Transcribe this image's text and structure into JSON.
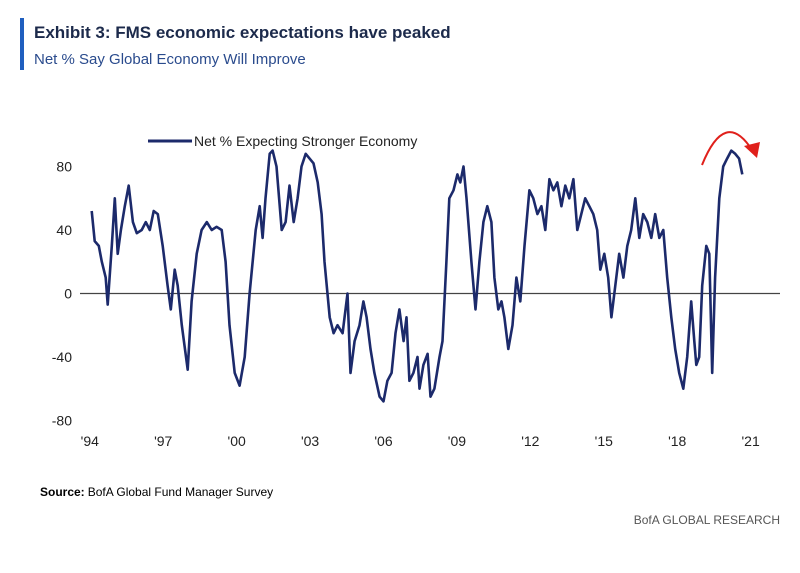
{
  "chart_data": {
    "type": "line",
    "title": "Exhibit 3: FMS economic expectations have peaked",
    "subtitle": "Net % Say Global Economy Will Improve",
    "source_label": "Source:",
    "source": "BofA Global Fund Manager Survey",
    "footer": "BofA GLOBAL RESEARCH",
    "x": [
      1994.08,
      1994.2,
      1994.37,
      1994.49,
      1994.65,
      1994.73,
      1994.9,
      1995.02,
      1995.14,
      1995.27,
      1995.43,
      1995.59,
      1995.76,
      1995.92,
      1996.12,
      1996.29,
      1996.45,
      1996.61,
      1996.78,
      1996.98,
      1997.18,
      1997.31,
      1997.47,
      1997.59,
      1997.76,
      1998.0,
      1998.16,
      1998.37,
      1998.57,
      1998.78,
      1998.98,
      1999.18,
      1999.39,
      1999.55,
      1999.71,
      1999.92,
      2000.12,
      2000.33,
      2000.53,
      2000.78,
      2000.94,
      2001.06,
      2001.18,
      2001.35,
      2001.47,
      2001.63,
      2001.84,
      2002.0,
      2002.16,
      2002.33,
      2002.49,
      2002.65,
      2002.82,
      2002.98,
      2003.14,
      2003.31,
      2003.47,
      2003.59,
      2003.8,
      2003.96,
      2004.12,
      2004.33,
      2004.53,
      2004.65,
      2004.82,
      2005.02,
      2005.18,
      2005.31,
      2005.47,
      2005.63,
      2005.84,
      2006.0,
      2006.16,
      2006.33,
      2006.49,
      2006.65,
      2006.82,
      2006.94,
      2007.06,
      2007.22,
      2007.39,
      2007.47,
      2007.63,
      2007.8,
      2007.92,
      2008.08,
      2008.29,
      2008.41,
      2008.57,
      2008.69,
      2008.86,
      2009.02,
      2009.14,
      2009.27,
      2009.39,
      2009.59,
      2009.76,
      2009.92,
      2010.08,
      2010.24,
      2010.41,
      2010.53,
      2010.69,
      2010.82,
      2010.94,
      2011.1,
      2011.27,
      2011.43,
      2011.59,
      2011.76,
      2011.96,
      2012.12,
      2012.29,
      2012.45,
      2012.61,
      2012.78,
      2012.94,
      2013.1,
      2013.27,
      2013.43,
      2013.59,
      2013.76,
      2013.92,
      2014.08,
      2014.24,
      2014.41,
      2014.57,
      2014.73,
      2014.86,
      2015.02,
      2015.18,
      2015.31,
      2015.47,
      2015.63,
      2015.8,
      2015.96,
      2016.12,
      2016.29,
      2016.45,
      2016.61,
      2016.78,
      2016.94,
      2017.1,
      2017.27,
      2017.43,
      2017.59,
      2017.76,
      2017.92,
      2018.08,
      2018.25,
      2018.41,
      2018.57,
      2018.7,
      2018.78,
      2018.9,
      2019.02,
      2019.19,
      2019.31,
      2019.43,
      2019.55,
      2019.72,
      2019.88,
      2020.04,
      2020.21,
      2020.37,
      2020.53,
      2020.66
    ],
    "series": [
      {
        "name": "Net % Expecting Stronger Economy",
        "color": "#1c2a6b",
        "values": [
          52,
          33,
          30,
          20,
          10,
          -7,
          30,
          60,
          25,
          40,
          55,
          68,
          45,
          38,
          40,
          45,
          40,
          52,
          50,
          30,
          5,
          -10,
          15,
          5,
          -20,
          -48,
          -5,
          25,
          40,
          45,
          40,
          42,
          40,
          20,
          -20,
          -50,
          -58,
          -40,
          0,
          40,
          55,
          35,
          60,
          88,
          90,
          80,
          40,
          45,
          68,
          45,
          60,
          80,
          88,
          85,
          82,
          70,
          50,
          20,
          -15,
          -25,
          -20,
          -25,
          0,
          -50,
          -30,
          -20,
          -5,
          -15,
          -35,
          -50,
          -65,
          -68,
          -55,
          -50,
          -25,
          -10,
          -30,
          -15,
          -55,
          -50,
          -40,
          -60,
          -45,
          -38,
          -65,
          -60,
          -40,
          -30,
          20,
          60,
          65,
          75,
          70,
          80,
          60,
          20,
          -10,
          20,
          45,
          55,
          45,
          10,
          -10,
          -5,
          -15,
          -35,
          -20,
          10,
          -5,
          30,
          65,
          60,
          50,
          55,
          40,
          72,
          65,
          70,
          55,
          68,
          60,
          72,
          40,
          50,
          60,
          55,
          50,
          40,
          15,
          25,
          10,
          -15,
          5,
          25,
          10,
          30,
          40,
          60,
          35,
          50,
          45,
          35,
          50,
          35,
          40,
          10,
          -15,
          -35,
          -50,
          -60,
          -40,
          -5,
          -30,
          -45,
          -40,
          5,
          30,
          25,
          -50,
          10,
          60,
          80,
          85,
          90,
          88,
          85,
          75
        ]
      }
    ],
    "xlim": [
      1993.6,
      2022.2
    ],
    "xticks": [
      {
        "value": 1994,
        "label": "'94"
      },
      {
        "value": 1997,
        "label": "'97"
      },
      {
        "value": 2000,
        "label": "'00"
      },
      {
        "value": 2003,
        "label": "'03"
      },
      {
        "value": 2006,
        "label": "'06"
      },
      {
        "value": 2009,
        "label": "'09"
      },
      {
        "value": 2012,
        "label": "'12"
      },
      {
        "value": 2015,
        "label": "'15"
      },
      {
        "value": 2018,
        "label": "'18"
      },
      {
        "value": 2021,
        "label": "'21"
      }
    ],
    "ylim": [
      -86,
      103
    ],
    "yticks": [
      -80,
      -40,
      0,
      40,
      80
    ]
  }
}
